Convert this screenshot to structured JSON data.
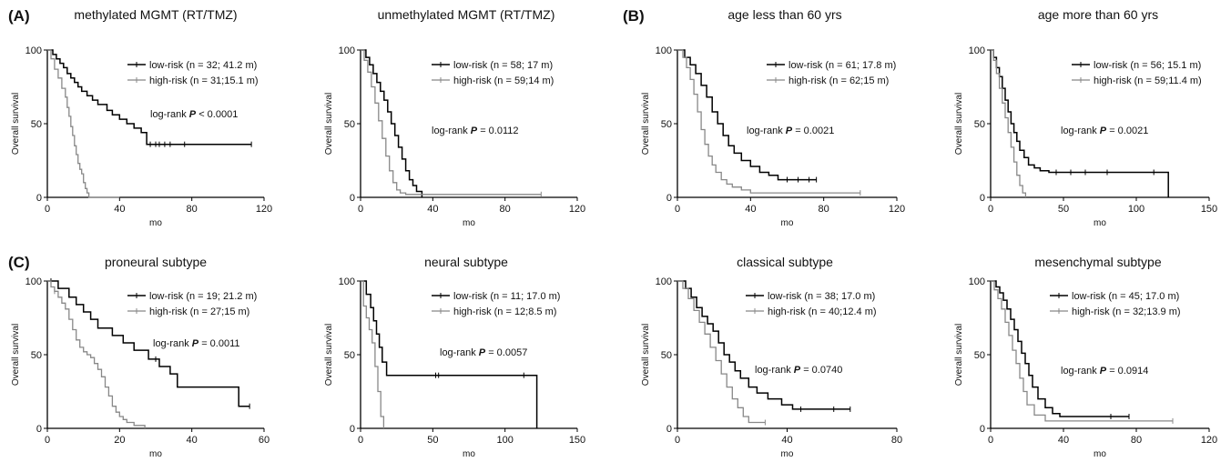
{
  "panel_letters": [
    "(A)",
    "(B)",
    "(C)"
  ],
  "chart_data": [
    {
      "type": "line",
      "title": "methylated MGMT (RT/TMZ)",
      "xlabel": "mo",
      "ylabel": "Overall survival",
      "xlim": [
        0,
        120
      ],
      "ylim": [
        0,
        100
      ],
      "xticks": [
        0,
        40,
        80,
        120
      ],
      "yticks": [
        0,
        50,
        100
      ],
      "stat": {
        "label": "log-rank",
        "p_label": "P",
        "p_value": "< 0.0001"
      },
      "series": [
        {
          "name": "low-risk (n = 32; 41.2 m)",
          "color": "#000000",
          "x": [
            0,
            3,
            5,
            7,
            9,
            11,
            13,
            15,
            17,
            19,
            22,
            25,
            28,
            33,
            36,
            40,
            44,
            48,
            52,
            55,
            113
          ],
          "y": [
            100,
            97,
            94,
            91,
            88,
            84,
            81,
            78,
            75,
            72,
            69,
            66,
            63,
            59,
            56,
            53,
            50,
            47,
            44,
            36,
            36
          ],
          "censor_x": [
            57,
            60,
            62,
            65,
            68,
            76,
            113
          ]
        },
        {
          "name": "high-risk (n = 31;15.1 m)",
          "color": "#888888",
          "x": [
            0,
            2,
            4,
            6,
            8,
            10,
            11,
            12,
            13,
            14,
            15,
            16,
            17,
            18,
            19,
            20,
            21,
            22,
            23,
            40
          ],
          "y": [
            100,
            94,
            87,
            81,
            74,
            68,
            61,
            55,
            48,
            42,
            35,
            29,
            23,
            19,
            16,
            10,
            6,
            3,
            0,
            0
          ],
          "censor_x": []
        }
      ]
    },
    {
      "type": "line",
      "title": "unmethylated MGMT (RT/TMZ)",
      "xlabel": "mo",
      "ylabel": "Overall survival",
      "xlim": [
        0,
        120
      ],
      "ylim": [
        0,
        100
      ],
      "xticks": [
        0,
        40,
        80,
        120
      ],
      "yticks": [
        0,
        50,
        100
      ],
      "stat": {
        "label": "log-rank",
        "p_label": "P",
        "p_value": "= 0.0112"
      },
      "series": [
        {
          "name": "low-risk (n = 58; 17 m)",
          "color": "#000000",
          "x": [
            0,
            3,
            5,
            7,
            9,
            11,
            13,
            15,
            17,
            19,
            21,
            23,
            25,
            27,
            29,
            31,
            34
          ],
          "y": [
            100,
            95,
            90,
            84,
            78,
            72,
            66,
            58,
            50,
            42,
            34,
            26,
            18,
            12,
            8,
            4,
            0
          ],
          "censor_x": []
        },
        {
          "name": "high-risk (n = 59;14 m)",
          "color": "#888888",
          "x": [
            0,
            2,
            4,
            6,
            8,
            10,
            12,
            14,
            16,
            18,
            20,
            22,
            25,
            100
          ],
          "y": [
            100,
            93,
            85,
            75,
            64,
            52,
            40,
            28,
            18,
            10,
            5,
            3,
            2,
            2
          ],
          "censor_x": [
            100
          ]
        }
      ]
    },
    {
      "type": "line",
      "title": "age less than 60 yrs",
      "xlabel": "mo",
      "ylabel": "Overall survival",
      "xlim": [
        0,
        120
      ],
      "ylim": [
        0,
        100
      ],
      "xticks": [
        0,
        40,
        80,
        120
      ],
      "yticks": [
        0,
        50,
        100
      ],
      "stat": {
        "label": "log-rank",
        "p_label": "P",
        "p_value": "= 0.0021"
      },
      "series": [
        {
          "name": "low-risk (n = 61; 17.8 m)",
          "color": "#000000",
          "x": [
            0,
            4,
            7,
            10,
            13,
            16,
            19,
            22,
            25,
            28,
            31,
            35,
            40,
            45,
            50,
            55,
            76
          ],
          "y": [
            100,
            95,
            90,
            84,
            76,
            68,
            58,
            50,
            42,
            35,
            30,
            25,
            21,
            17,
            15,
            12,
            12
          ],
          "censor_x": [
            60,
            66,
            72,
            76
          ]
        },
        {
          "name": "high-risk (n = 62;15 m)",
          "color": "#888888",
          "x": [
            0,
            3,
            5,
            7,
            9,
            11,
            13,
            15,
            17,
            19,
            21,
            24,
            27,
            30,
            35,
            40,
            100
          ],
          "y": [
            100,
            95,
            88,
            80,
            70,
            58,
            46,
            36,
            28,
            22,
            17,
            12,
            9,
            7,
            5,
            3,
            3
          ],
          "censor_x": [
            100
          ]
        }
      ]
    },
    {
      "type": "line",
      "title": "age more than 60 yrs",
      "xlabel": "mo",
      "ylabel": "Overall survival",
      "xlim": [
        0,
        150
      ],
      "ylim": [
        0,
        100
      ],
      "xticks": [
        0,
        50,
        100,
        150
      ],
      "yticks": [
        0,
        50,
        100
      ],
      "stat": {
        "label": "log-rank",
        "p_label": "P",
        "p_value": "= 0.0021"
      },
      "series": [
        {
          "name": "low-risk (n = 56; 15.1 m)",
          "color": "#000000",
          "x": [
            0,
            2,
            4,
            6,
            8,
            10,
            12,
            14,
            16,
            18,
            20,
            23,
            26,
            30,
            34,
            40,
            122,
            122
          ],
          "y": [
            100,
            95,
            88,
            82,
            74,
            66,
            58,
            50,
            44,
            38,
            32,
            27,
            22,
            20,
            18,
            17,
            17,
            0
          ],
          "censor_x": [
            45,
            55,
            65,
            80,
            112
          ]
        },
        {
          "name": "high-risk (n = 59;11.4 m)",
          "color": "#888888",
          "x": [
            0,
            2,
            4,
            6,
            8,
            10,
            12,
            14,
            16,
            18,
            20,
            22,
            24
          ],
          "y": [
            100,
            93,
            84,
            74,
            64,
            54,
            44,
            34,
            24,
            15,
            8,
            3,
            0
          ],
          "censor_x": []
        }
      ]
    },
    {
      "type": "line",
      "title": "proneural subtype",
      "xlabel": "mo",
      "ylabel": "Overall survival",
      "xlim": [
        0,
        60
      ],
      "ylim": [
        0,
        100
      ],
      "xticks": [
        0,
        20,
        40,
        60
      ],
      "yticks": [
        0,
        50,
        100
      ],
      "stat": {
        "label": "log-rank",
        "p_label": "P",
        "p_value": "= 0.0011"
      },
      "series": [
        {
          "name": "low-risk (n = 19; 21.2 m)",
          "color": "#000000",
          "x": [
            0,
            3,
            6,
            8,
            10,
            12,
            14,
            18,
            21,
            24,
            28,
            31,
            34,
            36,
            53,
            56
          ],
          "y": [
            100,
            95,
            89,
            84,
            79,
            74,
            68,
            63,
            58,
            53,
            47,
            42,
            37,
            28,
            15,
            15
          ],
          "censor_x": [
            1,
            30,
            56
          ]
        },
        {
          "name": "high-risk (n = 27;15 m)",
          "color": "#888888",
          "x": [
            0,
            1,
            2,
            3,
            4,
            5,
            6,
            7,
            8,
            9,
            10,
            11,
            12,
            13,
            14,
            15,
            16,
            17,
            18,
            19,
            20,
            21,
            22,
            24,
            27
          ],
          "y": [
            100,
            96,
            93,
            89,
            85,
            81,
            74,
            67,
            60,
            55,
            52,
            50,
            48,
            44,
            40,
            35,
            28,
            22,
            15,
            11,
            8,
            6,
            4,
            2,
            0
          ],
          "censor_x": [
            2
          ]
        }
      ]
    },
    {
      "type": "line",
      "title": "neural subtype",
      "xlabel": "mo",
      "ylabel": "Overall survival",
      "xlim": [
        0,
        150
      ],
      "ylim": [
        0,
        100
      ],
      "xticks": [
        0,
        50,
        100,
        150
      ],
      "yticks": [
        0,
        50,
        100
      ],
      "stat": {
        "label": "log-rank",
        "p_label": "P",
        "p_value": "= 0.0057"
      },
      "series": [
        {
          "name": "low-risk (n = 11; 17.0 m)",
          "color": "#000000",
          "x": [
            0,
            4,
            7,
            9,
            11,
            13,
            15,
            18,
            122,
            122
          ],
          "y": [
            100,
            91,
            82,
            73,
            64,
            55,
            45,
            36,
            36,
            0
          ],
          "censor_x": [
            52,
            54,
            113
          ]
        },
        {
          "name": "high-risk (n = 12;8.5 m)",
          "color": "#888888",
          "x": [
            0,
            2,
            4,
            6,
            8,
            10,
            12,
            14,
            16
          ],
          "y": [
            100,
            83,
            75,
            67,
            58,
            42,
            25,
            8,
            0
          ],
          "censor_x": []
        }
      ]
    },
    {
      "type": "line",
      "title": "classical subtype",
      "xlabel": "mo",
      "ylabel": "Overall survival",
      "xlim": [
        0,
        80
      ],
      "ylim": [
        0,
        100
      ],
      "xticks": [
        0,
        40,
        80
      ],
      "yticks": [
        0,
        50,
        100
      ],
      "stat": {
        "label": "log-rank",
        "p_label": "P",
        "p_value": "= 0.0740"
      },
      "series": [
        {
          "name": "low-risk (n = 38; 17.0 m)",
          "color": "#000000",
          "x": [
            0,
            3,
            5,
            7,
            9,
            11,
            13,
            15,
            17,
            19,
            21,
            23,
            26,
            29,
            33,
            38,
            42,
            63
          ],
          "y": [
            100,
            95,
            89,
            82,
            76,
            71,
            66,
            58,
            50,
            45,
            39,
            34,
            28,
            24,
            20,
            16,
            13,
            13
          ],
          "censor_x": [
            45,
            57,
            63
          ]
        },
        {
          "name": "high-risk (n = 40;12.4 m)",
          "color": "#888888",
          "x": [
            0,
            2,
            4,
            6,
            8,
            10,
            12,
            14,
            16,
            18,
            20,
            22,
            24,
            26,
            32
          ],
          "y": [
            100,
            95,
            88,
            80,
            72,
            64,
            55,
            46,
            37,
            28,
            20,
            14,
            8,
            4,
            4
          ],
          "censor_x": [
            32
          ]
        }
      ]
    },
    {
      "type": "line",
      "title": "mesenchymal subtype",
      "xlabel": "mo",
      "ylabel": "Overall survival",
      "xlim": [
        0,
        120
      ],
      "ylim": [
        0,
        100
      ],
      "xticks": [
        0,
        40,
        80,
        120
      ],
      "yticks": [
        0,
        50,
        100
      ],
      "stat": {
        "label": "log-rank",
        "p_label": "P",
        "p_value": "= 0.0914"
      },
      "series": [
        {
          "name": "low-risk (n = 45; 17.0 m)",
          "color": "#000000",
          "x": [
            0,
            3,
            5,
            7,
            9,
            11,
            13,
            15,
            17,
            19,
            21,
            23,
            26,
            30,
            34,
            38,
            76
          ],
          "y": [
            100,
            96,
            92,
            87,
            81,
            74,
            67,
            59,
            51,
            44,
            36,
            28,
            20,
            14,
            10,
            8,
            8
          ],
          "censor_x": [
            66,
            76
          ]
        },
        {
          "name": "high-risk (n = 32;13.9 m)",
          "color": "#888888",
          "x": [
            0,
            2,
            4,
            6,
            8,
            10,
            12,
            14,
            16,
            18,
            20,
            24,
            30,
            100
          ],
          "y": [
            100,
            94,
            88,
            81,
            72,
            63,
            53,
            44,
            34,
            25,
            16,
            9,
            5,
            5
          ],
          "censor_x": [
            100
          ]
        }
      ]
    }
  ]
}
